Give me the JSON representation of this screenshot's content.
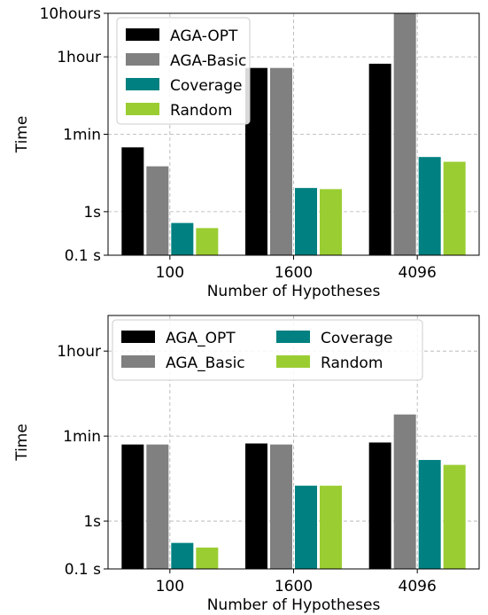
{
  "chart_data": [
    {
      "type": "bar",
      "yscale": "log",
      "categories": [
        "100",
        "1600",
        "4096"
      ],
      "xlabel": "Number of Hypotheses",
      "ylabel": "Time",
      "ylim": [
        0.1,
        36000
      ],
      "yticks": [
        {
          "value": 0.1,
          "label": "0.1 s"
        },
        {
          "value": 1,
          "label": "1s"
        },
        {
          "value": 60,
          "label": "1min"
        },
        {
          "value": 3600,
          "label": "1hour"
        },
        {
          "value": 36000,
          "label": "10hours"
        }
      ],
      "grid": true,
      "legend": {
        "position": "upper-left",
        "columns": 1
      },
      "series": [
        {
          "name": "AGA-OPT",
          "color": "#000000",
          "values": [
            30,
            2000,
            2500
          ]
        },
        {
          "name": "AGA-Basic",
          "color": "#808080",
          "values": [
            11,
            2000,
            36000
          ]
        },
        {
          "name": "Coverage",
          "color": "#008080",
          "values": [
            0.55,
            3.5,
            18
          ]
        },
        {
          "name": "Random",
          "color": "#9acd32",
          "values": [
            0.42,
            3.3,
            14
          ]
        }
      ]
    },
    {
      "type": "bar",
      "yscale": "log",
      "categories": [
        "100",
        "1600",
        "4096"
      ],
      "xlabel": "Number of Hypotheses",
      "ylabel": "Time",
      "ylim": [
        0.1,
        20000
      ],
      "yticks": [
        {
          "value": 0.1,
          "label": "0.1 s"
        },
        {
          "value": 1,
          "label": "1s"
        },
        {
          "value": 60,
          "label": "1min"
        },
        {
          "value": 3600,
          "label": "1hour"
        }
      ],
      "grid": true,
      "legend": {
        "position": "upper-center",
        "columns": 2
      },
      "series": [
        {
          "name": "AGA_OPT",
          "color": "#000000",
          "values": [
            40,
            42,
            44
          ]
        },
        {
          "name": "AGA_Basic",
          "color": "#808080",
          "values": [
            40,
            40,
            170
          ]
        },
        {
          "name": "Coverage",
          "color": "#008080",
          "values": [
            0.35,
            5.5,
            19
          ]
        },
        {
          "name": "Random",
          "color": "#9acd32",
          "values": [
            0.28,
            5.5,
            15
          ]
        }
      ]
    }
  ]
}
